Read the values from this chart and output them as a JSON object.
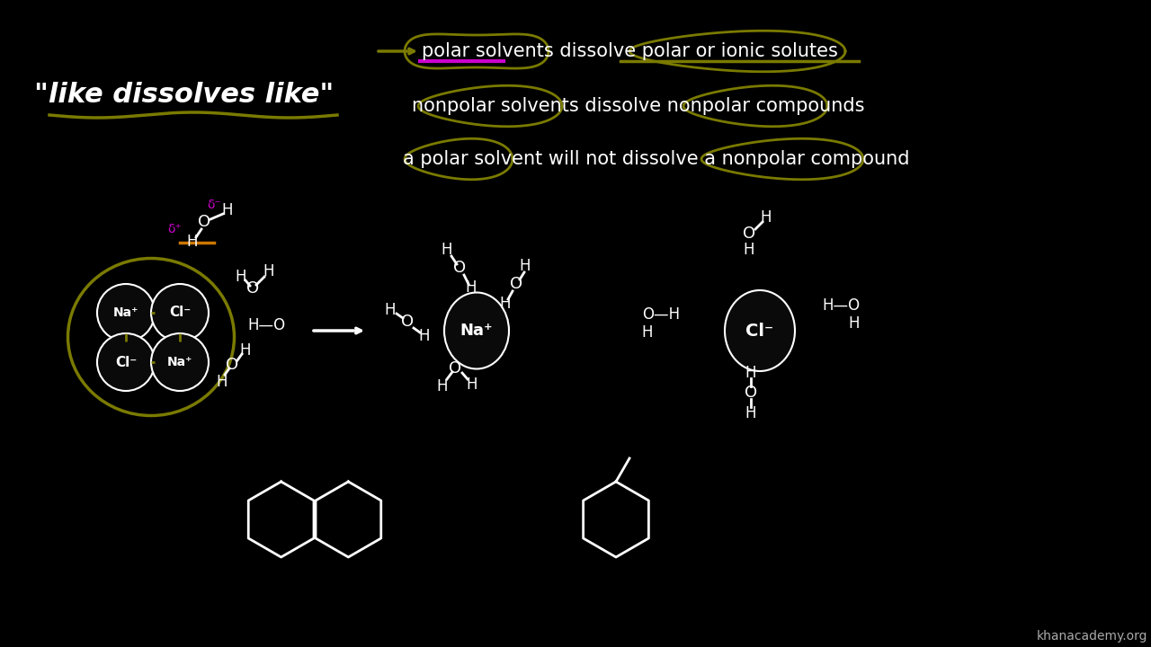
{
  "bg_color": "#000000",
  "text_color": "#ffffff",
  "olive_color": "#7a7a00",
  "magenta_color": "#cc00cc",
  "watermark": "khanacademy.org",
  "fig_width": 12.8,
  "fig_height": 7.2,
  "dpi": 100,
  "title_text": "\"like dissolves like\"",
  "line1": "polar solvents dissolve polar or ionic solutes",
  "line2": "nonpolar solvents dissolve nonpolar compounds",
  "line3": "a polar solvent will not dissolve a nonpolar compound"
}
